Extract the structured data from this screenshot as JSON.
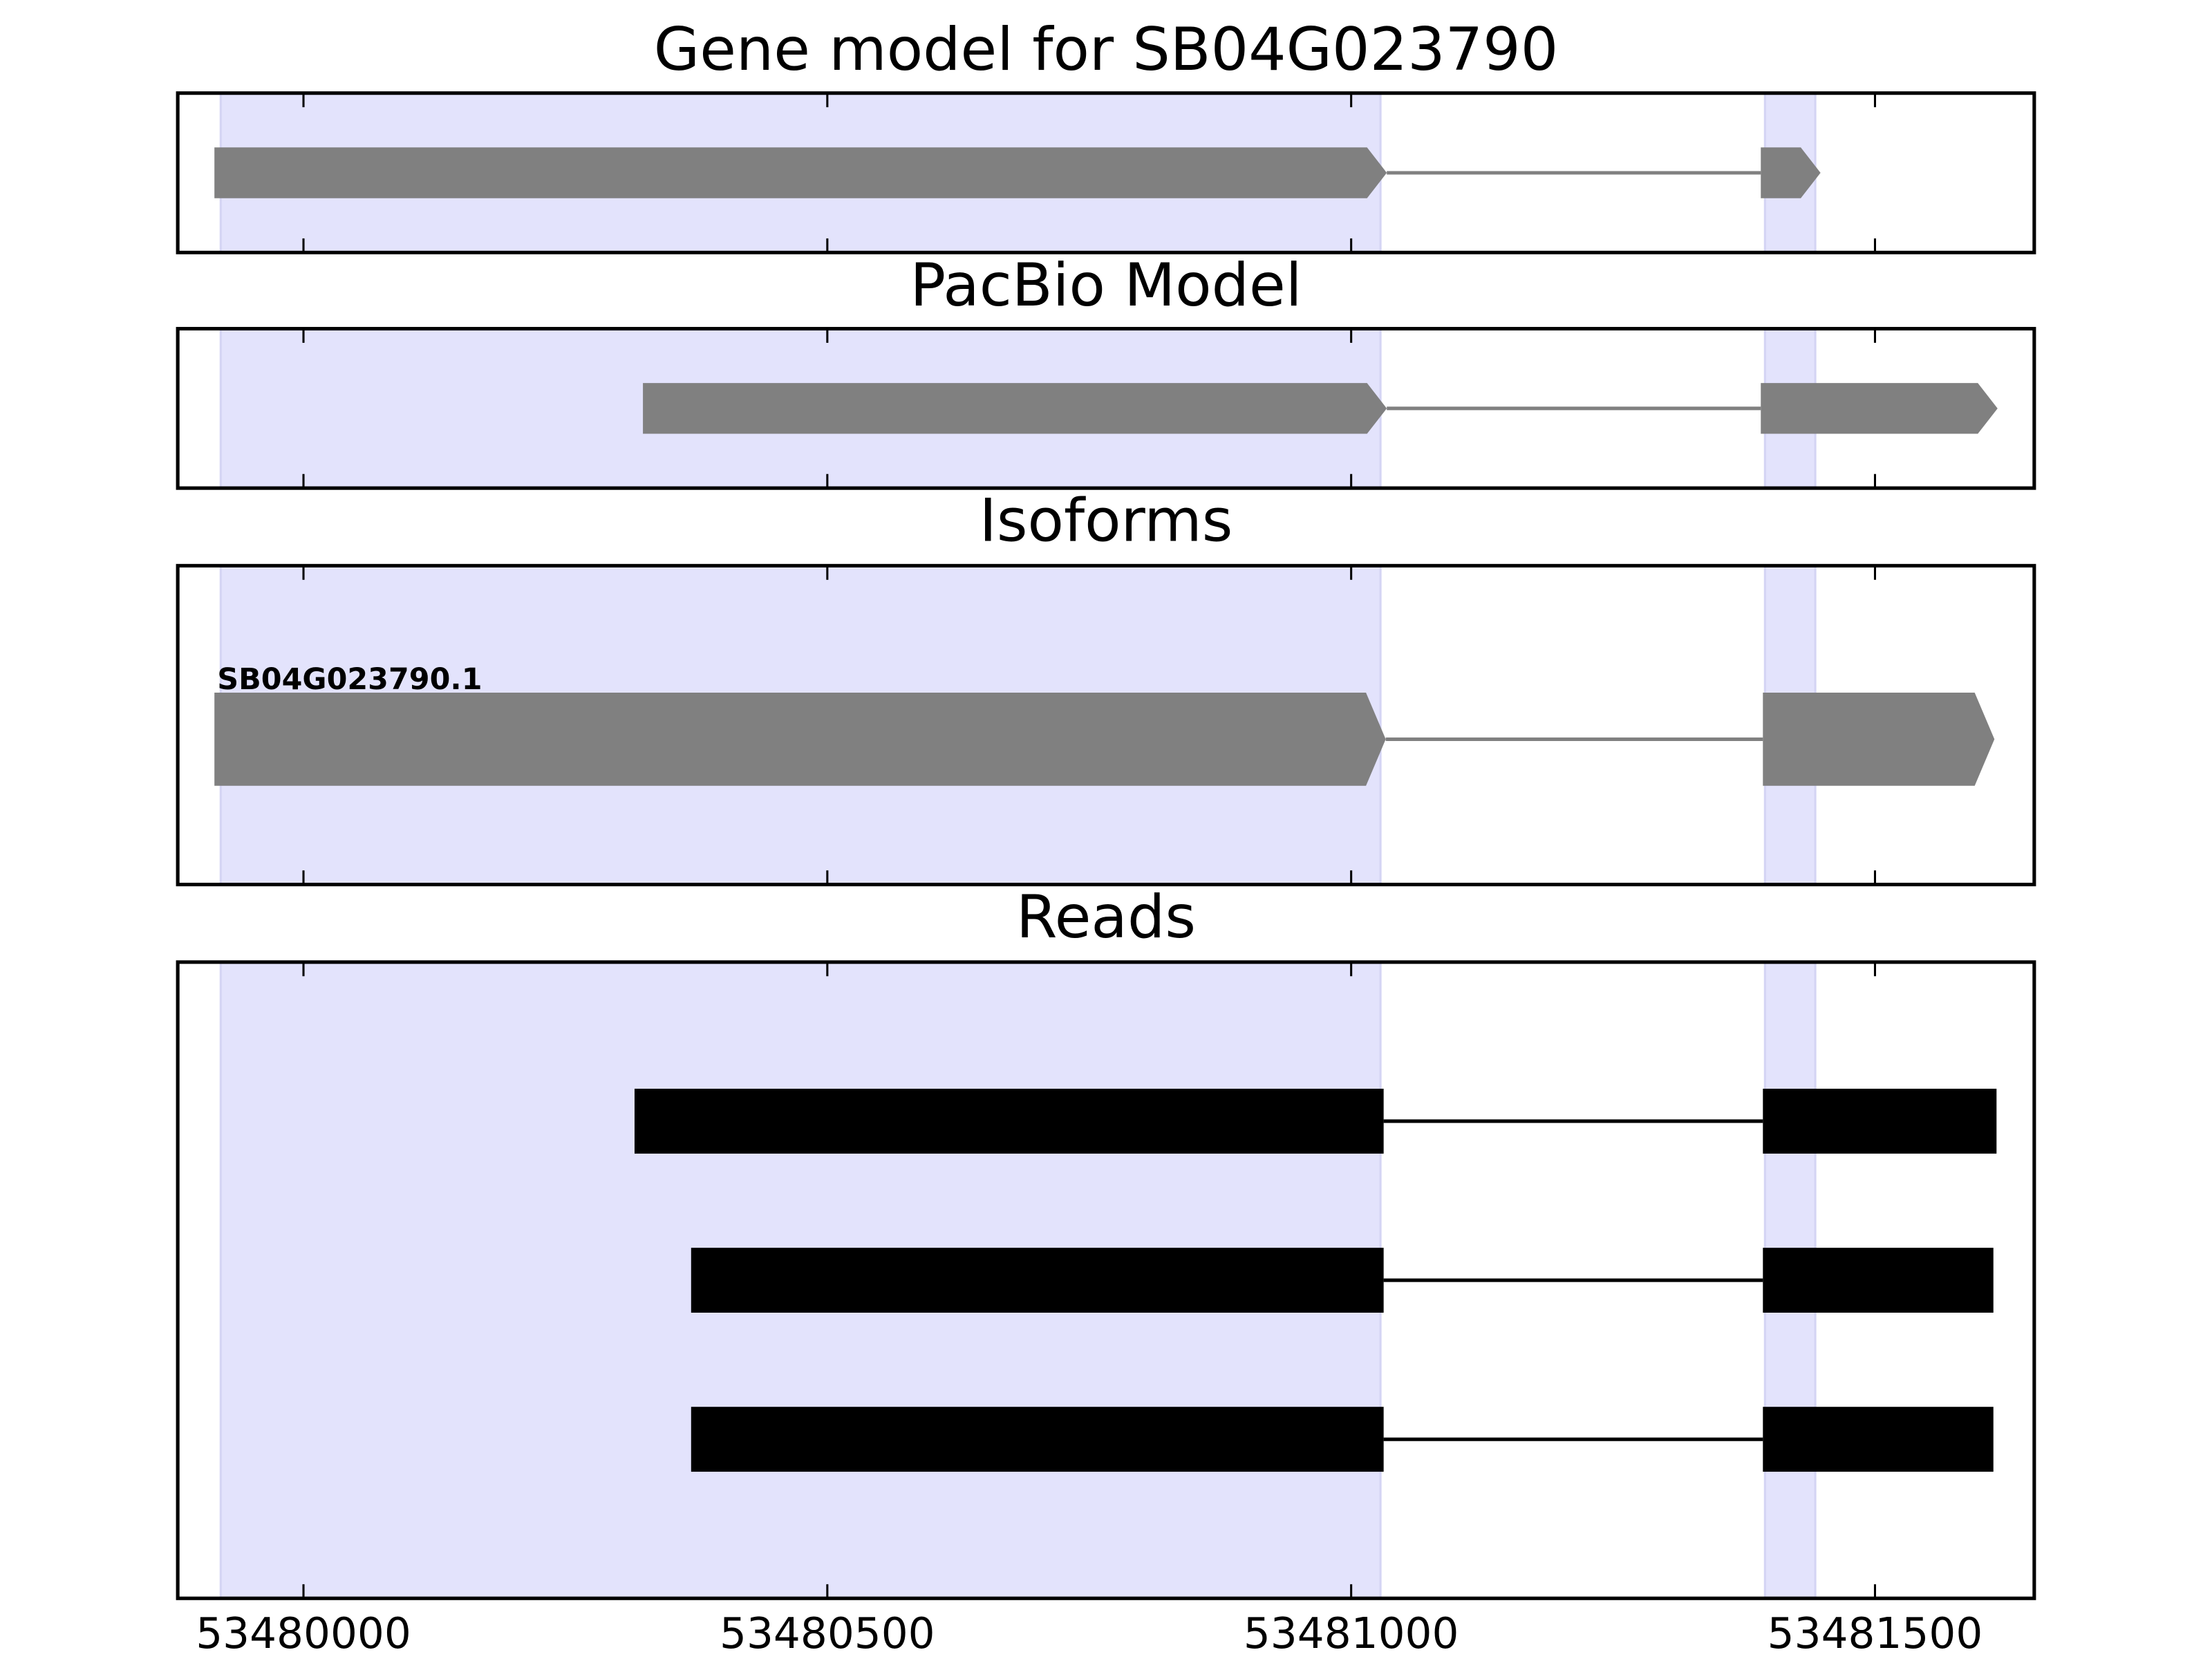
{
  "chart_data": [
    {
      "type": "gene_track",
      "title": "Gene model for SB04G023790",
      "xlim": [
        53479880,
        53481652
      ],
      "xticks": [
        53480000,
        53480500,
        53481000,
        53481500
      ],
      "tick_labels": false,
      "highlight_color": "#e3e3fc",
      "highlights": [
        [
          53479921,
          53481028
        ],
        [
          53481395,
          53481443
        ]
      ],
      "color": "#808080",
      "shape": "arrow",
      "tracks": [
        {
          "exons": [
            [
              53479915,
              53481034
            ],
            [
              53481391,
              53481448
            ]
          ]
        }
      ]
    },
    {
      "type": "gene_track",
      "title": "PacBio Model",
      "xlim": [
        53479880,
        53481652
      ],
      "xticks": [
        53480000,
        53480500,
        53481000,
        53481500
      ],
      "tick_labels": false,
      "highlight_color": "#e3e3fc",
      "highlights": [
        [
          53479921,
          53481028
        ],
        [
          53481395,
          53481443
        ]
      ],
      "color": "#808080",
      "shape": "arrow",
      "tracks": [
        {
          "exons": [
            [
              53480324,
              53481034
            ],
            [
              53481391,
              53481617
            ]
          ]
        }
      ]
    },
    {
      "type": "gene_track",
      "title": "Isoforms",
      "xlim": [
        53479880,
        53481652
      ],
      "xticks": [
        53480000,
        53480500,
        53481000,
        53481500
      ],
      "tick_labels": false,
      "highlight_color": "#e3e3fc",
      "highlights": [
        [
          53479921,
          53481028
        ],
        [
          53481395,
          53481443
        ]
      ],
      "color": "#808080",
      "shape": "arrow",
      "tracks": [
        {
          "name": "SB04G023790.1",
          "exons": [
            [
              53479915,
              53481033
            ],
            [
              53481393,
              53481614
            ]
          ]
        }
      ]
    },
    {
      "type": "gene_track",
      "title": "Reads",
      "xlim": [
        53479880,
        53481652
      ],
      "xticks": [
        53480000,
        53480500,
        53481000,
        53481500
      ],
      "tick_labels": true,
      "highlight_color": "#e3e3fc",
      "highlights": [
        [
          53479921,
          53481028
        ],
        [
          53481395,
          53481443
        ]
      ],
      "color": "#000000",
      "shape": "box",
      "tracks": [
        {
          "exons": [
            [
              53480316,
              53481031
            ],
            [
              53481393,
              53481616
            ]
          ]
        },
        {
          "exons": [
            [
              53480370,
              53481031
            ],
            [
              53481393,
              53481613
            ]
          ]
        },
        {
          "exons": [
            [
              53480370,
              53481031
            ],
            [
              53481393,
              53481613
            ]
          ]
        }
      ]
    }
  ]
}
